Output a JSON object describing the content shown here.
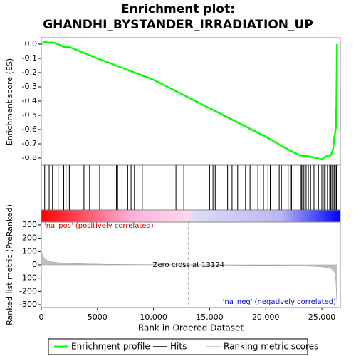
{
  "chart_data": [
    {
      "type": "line",
      "title": [
        "Enrichment plot:",
        "GHANDHI_BYSTANDER_IRRADIATION_UP"
      ],
      "ylabel": "Enrichment score (ES)",
      "xlim": [
        0,
        26650
      ],
      "ylim": [
        -0.85,
        0.045
      ],
      "yticks": [
        {
          "value": 0,
          "label": "0.0"
        },
        {
          "value": -0.1,
          "label": "-0.1"
        },
        {
          "value": -0.2,
          "label": "-0.2"
        },
        {
          "value": -0.3,
          "label": "-0.3"
        },
        {
          "value": -0.4,
          "label": "-0.4"
        },
        {
          "value": -0.5,
          "label": "-0.5"
        },
        {
          "value": -0.6,
          "label": "-0.6"
        },
        {
          "value": -0.7,
          "label": "-0.7"
        },
        {
          "value": -0.8,
          "label": "-0.8"
        }
      ],
      "series": [
        {
          "name": "Enrichment profile",
          "color": "#00ff00",
          "x": [
            0,
            300,
            700,
            1000,
            1500,
            2000,
            2500,
            5000,
            10000,
            13000,
            15000,
            20000,
            22000,
            23000,
            24000,
            25000,
            25300,
            25800,
            26000,
            26100,
            26250,
            26300,
            26350
          ],
          "values": [
            0.0,
            0.015,
            0.01,
            0.012,
            0.0,
            -0.02,
            -0.02,
            -0.1,
            -0.25,
            -0.37,
            -0.45,
            -0.65,
            -0.74,
            -0.78,
            -0.79,
            -0.81,
            -0.79,
            -0.78,
            -0.74,
            -0.66,
            -0.59,
            -0.43,
            0.0
          ]
        }
      ],
      "hits": {
        "name": "Hits",
        "color": "#000000",
        "x": [
          300,
          700,
          1000,
          1500,
          2000,
          2200,
          2500,
          3800,
          4300,
          5200,
          6700,
          6800,
          7200,
          7700,
          7900,
          8000,
          8300,
          9000,
          12000,
          12700,
          15000,
          15300,
          15500,
          16600,
          17000,
          17500,
          18200,
          18600,
          19300,
          19800,
          20200,
          20400,
          21200,
          21400,
          22000,
          22200,
          22300,
          23100,
          23200,
          23300,
          23400,
          23600,
          23800,
          24000,
          24300,
          24700,
          25000,
          25200,
          25300,
          25500,
          25700,
          25800,
          25900,
          26000,
          26100,
          26200,
          26300
        ]
      }
    },
    {
      "type": "area",
      "ylabel": "Ranked list metric (PreRanked)",
      "xlabel": "Rank in Ordered Dataset",
      "xlim": [
        0,
        26650
      ],
      "xticks": [
        0,
        5000,
        {
          "value": 10000,
          "label": "10,000"
        },
        {
          "value": 15000,
          "label": "15,000"
        },
        {
          "value": 20000,
          "label": "20,000"
        },
        {
          "value": 25000,
          "label": "25,000"
        }
      ],
      "ylim": [
        -321,
        321
      ],
      "yticks": [
        -300,
        -200,
        -100,
        0,
        100,
        200,
        300
      ],
      "series": [
        {
          "name": "Ranking metric scores",
          "color": "#bebebe",
          "x": [
            0,
            100,
            300,
            600,
            1000,
            1500,
            2500,
            4000,
            6000,
            9000,
            13124,
            16000,
            20000,
            23000,
            24500,
            25300,
            25800,
            26000,
            26150,
            26250,
            26300,
            26350
          ],
          "values": [
            110,
            70,
            45,
            30,
            22,
            16,
            11,
            7,
            4,
            2,
            0,
            -2,
            -4,
            -8,
            -12,
            -18,
            -28,
            -40,
            -60,
            -120,
            -220,
            -300
          ]
        }
      ],
      "pos_label": "'na_pos' (positively correlated)",
      "neg_label": "'na_neg' (negatively correlated)",
      "zero_cross": 13124,
      "zero_cross_label": "Zero cross at 13124"
    }
  ]
}
